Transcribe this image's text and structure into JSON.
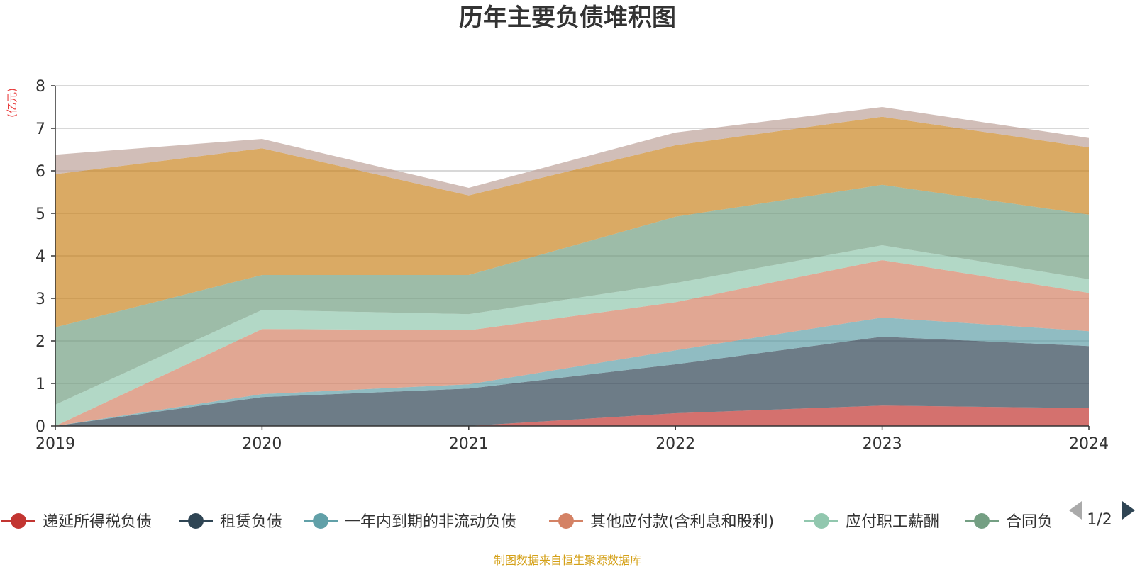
{
  "chart_data": {
    "type": "area",
    "stacked": true,
    "title": "历年主要负债堆积图",
    "ylabel": "(亿元)",
    "x": [
      "2019",
      "2020",
      "2021",
      "2022",
      "2023",
      "2024"
    ],
    "ylim": [
      0,
      8
    ],
    "yticks": [
      "0",
      "1",
      "2",
      "3",
      "4",
      "5",
      "6",
      "7",
      "8"
    ],
    "grid": true,
    "series": [
      {
        "name": "递延所得税负债",
        "color": "#c23531",
        "values": [
          0.0,
          0.0,
          0.0,
          0.3,
          0.48,
          0.42
        ]
      },
      {
        "name": "租赁负债",
        "color": "#2f4554",
        "values": [
          0.0,
          0.68,
          0.88,
          1.15,
          1.62,
          1.46
        ]
      },
      {
        "name": "一年内到期的非流动负债",
        "color": "#61a0a8",
        "values": [
          0.0,
          0.07,
          0.1,
          0.33,
          0.45,
          0.35
        ]
      },
      {
        "name": "其他应付款(含利息和股利)",
        "color": "#d48265",
        "values": [
          0.0,
          1.53,
          1.27,
          1.13,
          1.35,
          0.9
        ]
      },
      {
        "name": "应付职工薪酬",
        "color": "#91c7ae",
        "values": [
          0.5,
          0.45,
          0.38,
          0.45,
          0.35,
          0.32
        ]
      },
      {
        "name": "合同负债",
        "color": "#749f83",
        "values": [
          1.82,
          0.82,
          0.92,
          1.56,
          1.42,
          1.52
        ]
      },
      {
        "name": "",
        "color": "#ca8622",
        "values": [
          3.6,
          2.98,
          1.87,
          1.68,
          1.6,
          1.58
        ]
      },
      {
        "name": "",
        "color": "#bda29a",
        "values": [
          0.46,
          0.22,
          0.18,
          0.3,
          0.23,
          0.22
        ]
      }
    ],
    "legend": {
      "position": "bottom",
      "visible_items": [
        "递延所得税负债",
        "租赁负债",
        "一年内到期的非流动负债",
        "其他应付款(含利息和股利)",
        "应付职工薪酬",
        "合同负"
      ],
      "page": "1/2"
    },
    "source": "制图数据来自恒生聚源数据库"
  }
}
